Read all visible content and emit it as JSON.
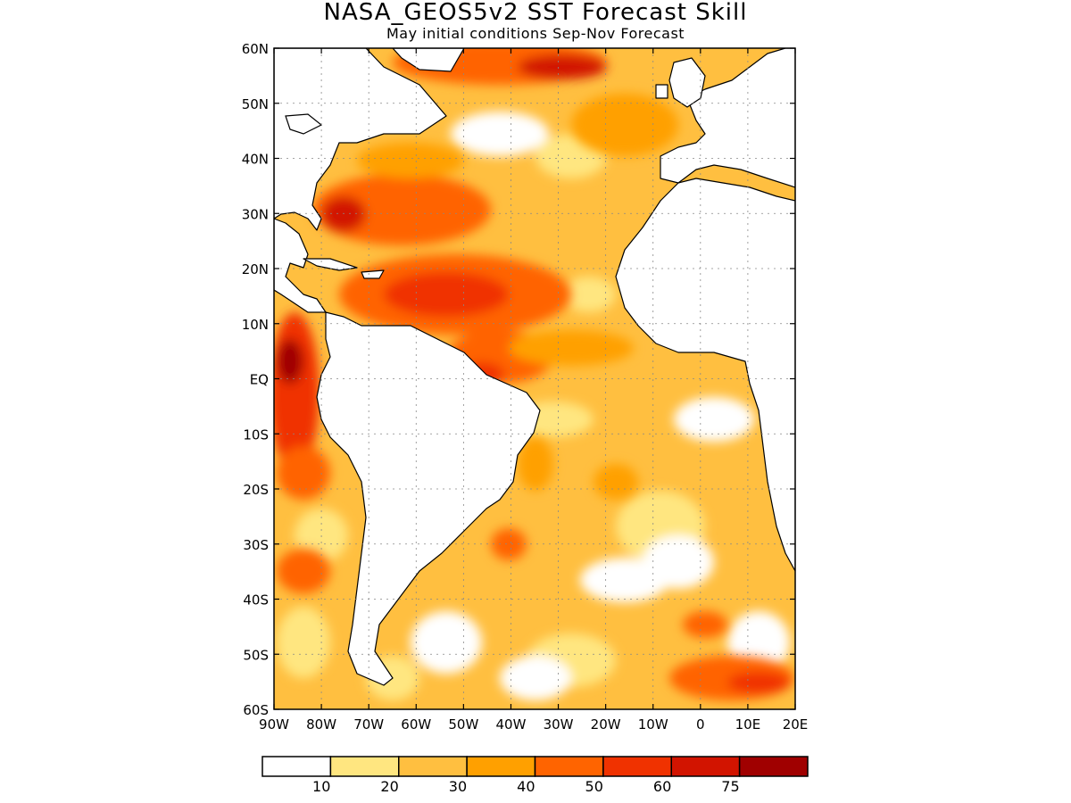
{
  "title": "NASA_GEOS5v2 SST Forecast Skill",
  "subtitle": "May initial conditions   Sep-Nov Forecast",
  "lat_labels": [
    "60N",
    "50N",
    "40N",
    "30N",
    "20N",
    "10N",
    "EQ",
    "10S",
    "20S",
    "30S",
    "40S",
    "50S",
    "60S"
  ],
  "lat_values": [
    60,
    50,
    40,
    30,
    20,
    10,
    0,
    -10,
    -20,
    -30,
    -40,
    -50,
    -60
  ],
  "lon_labels": [
    "90W",
    "80W",
    "70W",
    "60W",
    "50W",
    "40W",
    "30W",
    "20W",
    "10W",
    "0",
    "10E",
    "20E"
  ],
  "lon_values": [
    -90,
    -80,
    -70,
    -60,
    -50,
    -40,
    -30,
    -20,
    -10,
    0,
    10,
    20
  ],
  "colorbar": {
    "colors": [
      "#ffffff",
      "#ffe680",
      "#ffbf40",
      "#ffa000",
      "#ff6400",
      "#f03200",
      "#d21400",
      "#a00000"
    ],
    "labels": [
      "10",
      "20",
      "30",
      "40",
      "50",
      "60",
      "75"
    ]
  }
}
